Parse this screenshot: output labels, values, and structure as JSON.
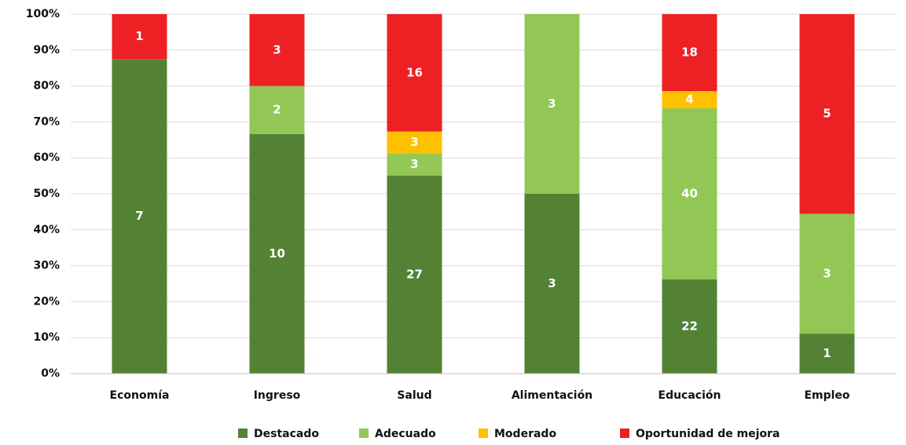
{
  "chart_data": {
    "type": "bar",
    "stacked": "percent",
    "categories": [
      "Economía",
      "Ingreso",
      "Salud",
      "Alimentación",
      "Educación",
      "Empleo"
    ],
    "series": [
      {
        "name": "Destacado",
        "color": "#548235",
        "values": [
          7,
          10,
          27,
          3,
          22,
          1
        ]
      },
      {
        "name": "Adecuado",
        "color": "#92c755",
        "values": [
          0,
          2,
          3,
          3,
          40,
          3
        ]
      },
      {
        "name": "Moderado",
        "color": "#ffc000",
        "values": [
          0,
          0,
          3,
          0,
          4,
          0
        ]
      },
      {
        "name": "Oportunidad de mejora",
        "color": "#ed2024",
        "values": [
          1,
          3,
          16,
          0,
          18,
          5
        ]
      }
    ],
    "ylim": [
      0,
      100
    ],
    "yticks": [
      {
        "value": 0,
        "label": "0%"
      },
      {
        "value": 10,
        "label": "10%"
      },
      {
        "value": 20,
        "label": "20%"
      },
      {
        "value": 30,
        "label": "30%"
      },
      {
        "value": 40,
        "label": "40%"
      },
      {
        "value": 50,
        "label": "50%"
      },
      {
        "value": 60,
        "label": "60%"
      },
      {
        "value": 70,
        "label": "70%"
      },
      {
        "value": 80,
        "label": "80%"
      },
      {
        "value": 90,
        "label": "90%"
      },
      {
        "value": 100,
        "label": "100%"
      }
    ],
    "grid": true,
    "legend": "bottom"
  }
}
